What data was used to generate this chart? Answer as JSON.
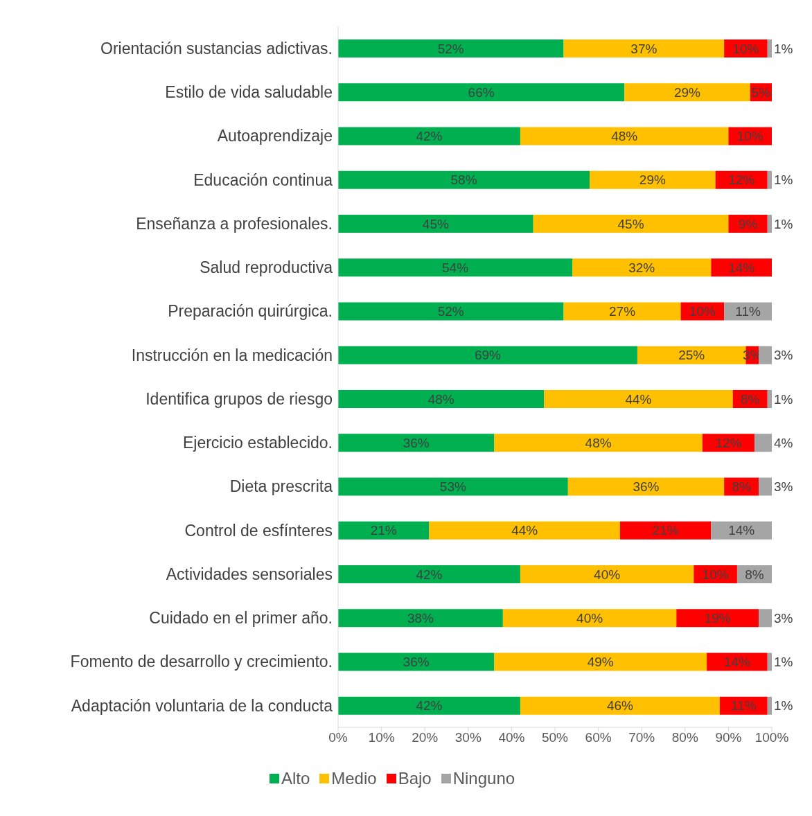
{
  "chart_data": {
    "type": "bar",
    "orientation": "horizontal",
    "stacked": true,
    "categories": [
      "Orientación sustancias adictivas.",
      "Estilo de vida saludable",
      "Autoaprendizaje",
      "Educación continua",
      "Enseñanza a profesionales.",
      "Salud reproductiva",
      "Preparación quirúrgica.",
      "Instrucción en la medicación",
      "Identifica grupos de riesgo",
      "Ejercicio establecido.",
      "Dieta prescrita",
      "Control de esfínteres",
      "Actividades sensoriales",
      "Cuidado en el primer año.",
      "Fomento de desarrollo y crecimiento.",
      "Adaptación voluntaria de la conducta"
    ],
    "series": [
      {
        "name": "Alto",
        "color": "#00b050",
        "values": [
          52,
          66,
          42,
          58,
          45,
          54,
          52,
          69,
          47.5,
          36,
          53,
          21,
          42,
          38,
          36,
          42
        ],
        "value_labels": [
          "52%",
          "66%",
          "42%",
          "58%",
          "45%",
          "54%",
          "52%",
          "69%",
          "48%",
          "36%",
          "53%",
          "21%",
          "42%",
          "38%",
          "36%",
          "42%"
        ]
      },
      {
        "name": "Medio",
        "color": "#ffc000",
        "values": [
          37,
          29,
          48,
          29,
          45,
          32,
          27,
          25,
          43.5,
          48,
          36,
          44,
          40,
          40,
          49,
          46
        ],
        "value_labels": [
          "37%",
          "29%",
          "48%",
          "29%",
          "45%",
          "32%",
          "27%",
          "25%",
          "44%",
          "48%",
          "36%",
          "44%",
          "40%",
          "40%",
          "49%",
          "46%"
        ]
      },
      {
        "name": "Bajo",
        "color": "#ff0000",
        "values": [
          10,
          5,
          10,
          12,
          9,
          14,
          10,
          3,
          8,
          12,
          8,
          21,
          10,
          19,
          14,
          11
        ],
        "value_labels": [
          "10%",
          "5%",
          "10%",
          "12%",
          "9%",
          "14%",
          "10%",
          "3%",
          "8%",
          "12%",
          "8%",
          "21%",
          "10%",
          "19%",
          "14%",
          "11%"
        ]
      },
      {
        "name": "Ninguno",
        "color": "#a5a5a5",
        "values": [
          1,
          null,
          null,
          1,
          1,
          null,
          11,
          3,
          1,
          4,
          3,
          14,
          8,
          3,
          1,
          1
        ],
        "value_labels": [
          "1%",
          null,
          null,
          "1%",
          "1%",
          null,
          "11%",
          "3%",
          "1%",
          "4%",
          "3%",
          "14%",
          "8%",
          "3%",
          "1%",
          "1%"
        ]
      }
    ],
    "xlim": [
      0,
      100
    ],
    "xticks": [
      {
        "value": 0,
        "label": "0%"
      },
      {
        "value": 10,
        "label": "10%"
      },
      {
        "value": 20,
        "label": "20%"
      },
      {
        "value": 30,
        "label": "30%"
      },
      {
        "value": 40,
        "label": "40%"
      },
      {
        "value": 50,
        "label": "50%"
      },
      {
        "value": 60,
        "label": "60%"
      },
      {
        "value": 70,
        "label": "70%"
      },
      {
        "value": 80,
        "label": "80%"
      },
      {
        "value": 90,
        "label": "90%"
      },
      {
        "value": 100,
        "label": "100%"
      }
    ],
    "legend": "bottom"
  }
}
